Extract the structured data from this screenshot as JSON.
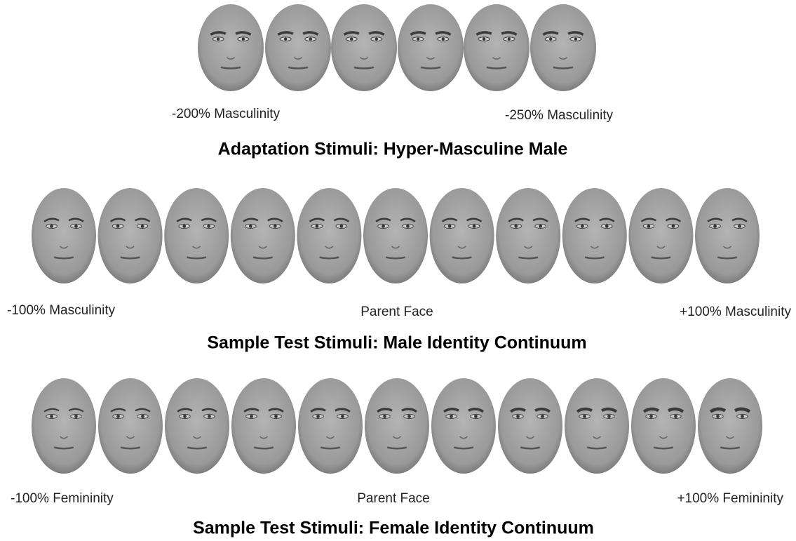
{
  "sections": [
    {
      "title": "Adaptation Stimuli: Hyper-Masculine Male",
      "labels": [
        "-200% Masculinity",
        "-250% Masculinity"
      ]
    },
    {
      "title": "Sample Test Stimuli: Male Identity Continuum",
      "labels": [
        "-100% Masculinity",
        "Parent Face",
        "+100% Masculinity"
      ]
    },
    {
      "title": "Sample Test Stimuli: Female Identity Continuum",
      "labels": [
        "-100% Femininity",
        "Parent Face",
        "+100% Femininity"
      ]
    }
  ]
}
